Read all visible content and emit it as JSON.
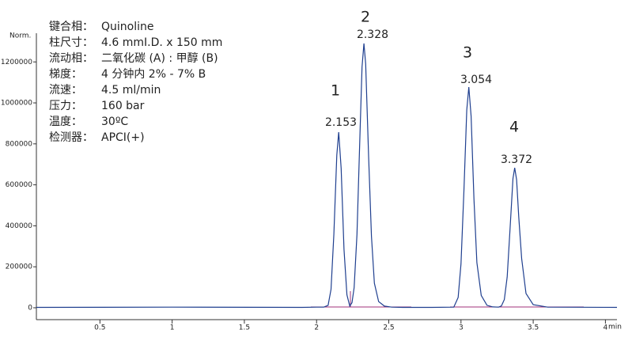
{
  "chart_data": {
    "type": "line",
    "y_label": "Norm.",
    "x_label": "min",
    "info": [
      {
        "label": "键合相：",
        "value": "Quinoline"
      },
      {
        "label": "柱尺寸：",
        "value": "4.6 mmI.D. x 150 mm"
      },
      {
        "label": "流动相：",
        "value": "二氧化碳 (A) : 甲醇 (B)"
      },
      {
        "label": "梯度：",
        "value": "4 分钟内 2% - 7% B"
      },
      {
        "label": "流速：",
        "value": "4.5 ml/min"
      },
      {
        "label": "压力：",
        "value": "160 bar"
      },
      {
        "label": "温度：",
        "value": "30ºC"
      },
      {
        "label": "检测器：",
        "value": "APCI(+)"
      }
    ],
    "peak_numbers": [
      "1",
      "2",
      "3",
      "4"
    ],
    "peak_labels": [
      "2.153",
      "2.328",
      "3.054",
      "3.372"
    ],
    "x": [
      0.06,
      1.0,
      1.9,
      2.0,
      2.05,
      2.08,
      2.1,
      2.12,
      2.14,
      2.153,
      2.17,
      2.19,
      2.21,
      2.23,
      2.245,
      2.26,
      2.28,
      2.3,
      2.315,
      2.328,
      2.34,
      2.36,
      2.38,
      2.4,
      2.43,
      2.47,
      2.52,
      2.6,
      2.8,
      2.95,
      2.98,
      3.0,
      3.02,
      3.04,
      3.054,
      3.07,
      3.09,
      3.11,
      3.14,
      3.18,
      3.22,
      3.26,
      3.28,
      3.3,
      3.32,
      3.34,
      3.36,
      3.372,
      3.385,
      3.4,
      3.42,
      3.45,
      3.5,
      3.6,
      4.08
    ],
    "series": [
      {
        "name": "signal",
        "color": "#1f3f8f",
        "values": [
          2000,
          3000,
          2000,
          3000,
          3000,
          12000,
          90000,
          360000,
          745000,
          857000,
          680000,
          285000,
          63000,
          8000,
          25000,
          98000,
          358000,
          835000,
          1175000,
          1290000,
          1190000,
          740000,
          350000,
          120000,
          30000,
          8000,
          3000,
          2000,
          2000,
          3000,
          50000,
          214000,
          570000,
          965000,
          1077000,
          935000,
          530000,
          220000,
          60000,
          12000,
          4000,
          3000,
          9000,
          40000,
          150000,
          390000,
          630000,
          683000,
          625000,
          445000,
          240000,
          70000,
          15000,
          3000,
          2000
        ]
      }
    ],
    "xlim": [
      0.06,
      4.08
    ],
    "ylim": [
      -58000,
      1340000
    ],
    "xticks": [
      0.5,
      1,
      1.5,
      2,
      2.5,
      3,
      3.5,
      4
    ],
    "yticks": [
      0,
      200000,
      400000,
      600000,
      800000,
      1000000,
      1200000
    ]
  }
}
